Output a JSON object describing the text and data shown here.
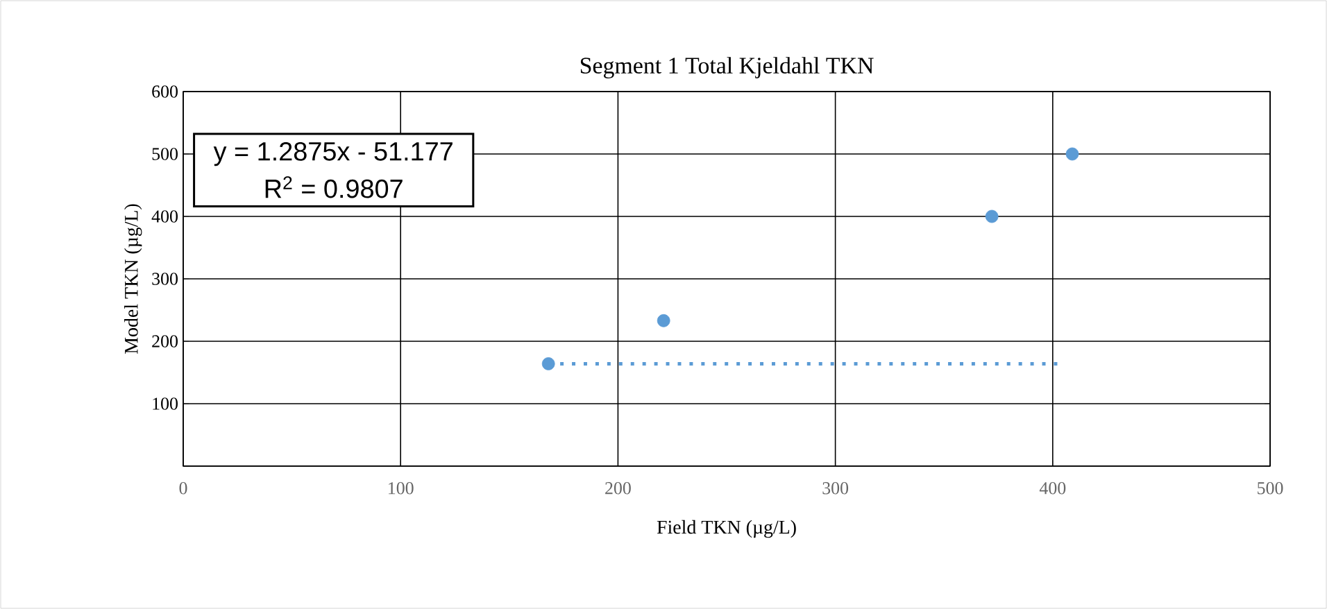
{
  "chart_data": {
    "type": "scatter",
    "title": "Segment 1 Total Kjeldahl TKN",
    "xlabel": "Field TKN (µg/L)",
    "ylabel": "Model TKN (µg/L)",
    "xlim": [
      0,
      500
    ],
    "xticks": [
      0,
      100,
      200,
      300,
      400,
      500
    ],
    "ylim": [
      0,
      600
    ],
    "yticks": [
      {
        "value": 0,
        "label": null
      },
      100,
      200,
      300,
      400,
      500,
      600
    ],
    "grid": true,
    "marker": "circle",
    "series": [
      {
        "color": "#5b9bd5",
        "x": [
          168,
          221,
          372,
          409
        ],
        "values": [
          164,
          233,
          400,
          500
        ]
      },
      {
        "type": "line",
        "color": "#5b9bd5",
        "line_style": "dotted",
        "marker": "none",
        "x": [
          168,
          404
        ],
        "values": [
          164,
          164
        ]
      }
    ],
    "annotations": [
      "y = 1.2875x - 51.177",
      "R$^{2}$ = 0.9807"
    ]
  }
}
